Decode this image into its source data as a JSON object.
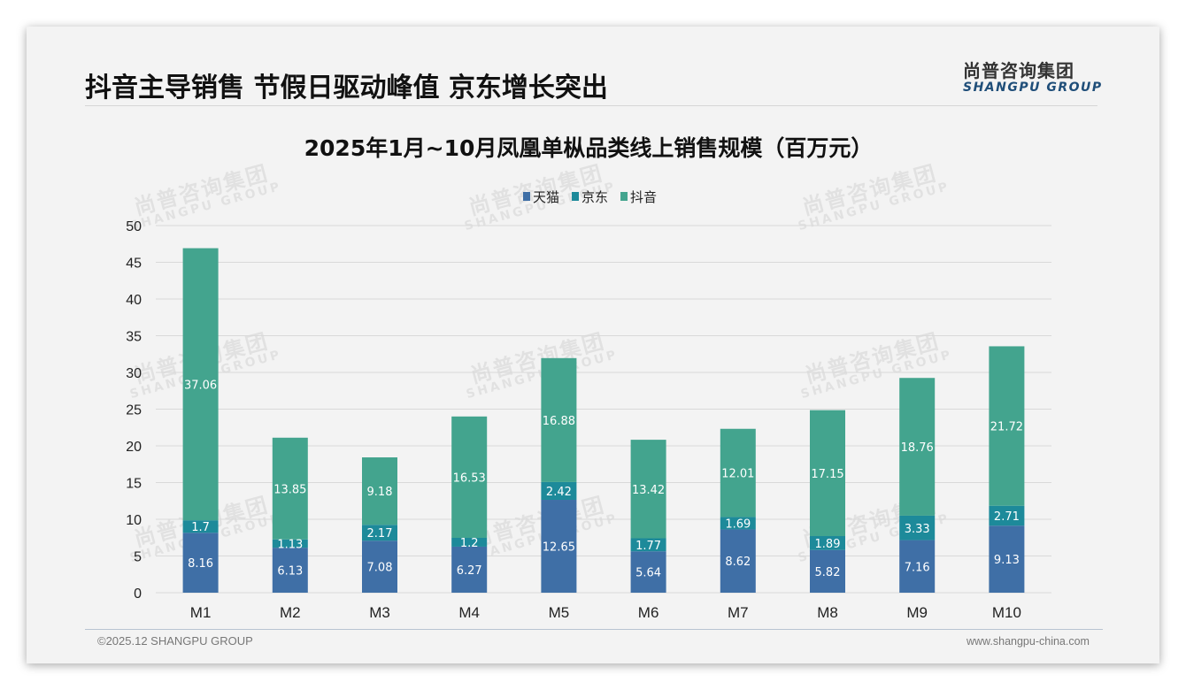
{
  "header": {
    "headline": "抖音主导销售 节假日驱动峰值 京东增长突出",
    "logo_cn": "尚普咨询集团",
    "logo_en": "SHANGPU GROUP"
  },
  "footer": {
    "copyright": "©2025.12 SHANGPU GROUP",
    "website": "www.shangpu-china.com"
  },
  "watermark": {
    "cn": "尚普咨询集团",
    "en": "SHANGPU GROUP"
  },
  "colors": {
    "tmall": "#3f6fa6",
    "jd": "#1d8a9a",
    "douyin": "#43a48e",
    "grid": "#d9d9d9"
  },
  "chart_data": {
    "type": "bar",
    "stacked": true,
    "title": "2025年1月~10月凤凰单枞品类线上销售规模（百万元）",
    "xlabel": "",
    "ylabel": "",
    "ylim": [
      0,
      50
    ],
    "yticks": [
      0,
      5,
      10,
      15,
      20,
      25,
      30,
      35,
      40,
      45,
      50
    ],
    "grid": true,
    "legend_position": "top-center",
    "categories": [
      "M1",
      "M2",
      "M3",
      "M4",
      "M5",
      "M6",
      "M7",
      "M8",
      "M9",
      "M10"
    ],
    "series": [
      {
        "name": "天猫",
        "color_key": "tmall",
        "values": [
          8.16,
          6.13,
          7.08,
          6.27,
          12.65,
          5.64,
          8.62,
          5.82,
          7.16,
          9.13
        ]
      },
      {
        "name": "京东",
        "color_key": "jd",
        "values": [
          1.7,
          1.13,
          2.17,
          1.2,
          2.42,
          1.77,
          1.69,
          1.89,
          3.33,
          2.71
        ]
      },
      {
        "name": "抖音",
        "color_key": "douyin",
        "values": [
          37.06,
          13.85,
          9.18,
          16.53,
          16.88,
          13.42,
          12.01,
          17.15,
          18.76,
          21.72
        ]
      }
    ]
  }
}
